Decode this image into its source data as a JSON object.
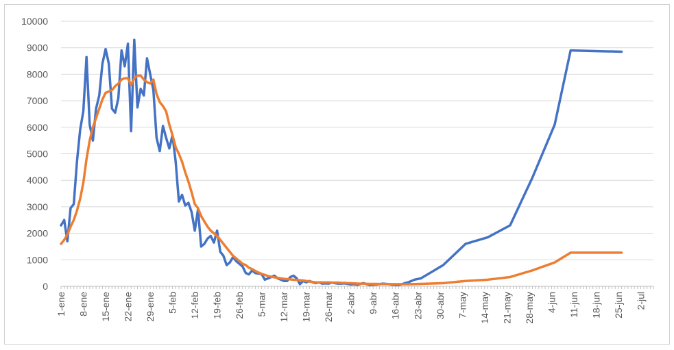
{
  "chart_data": {
    "type": "line",
    "title": "",
    "xlabel": "",
    "ylabel": "",
    "ylim": [
      0,
      10000
    ],
    "yticks": [
      0,
      1000,
      2000,
      3000,
      4000,
      5000,
      6000,
      7000,
      8000,
      9000,
      10000
    ],
    "x_range": [
      "1-ene",
      "8-jul"
    ],
    "grid": true,
    "legend": "none",
    "x_tick_labels": [
      "1-ene",
      "8-ene",
      "15-ene",
      "22-ene",
      "29-ene",
      "5-feb",
      "12-feb",
      "19-feb",
      "26-feb",
      "5-mar",
      "12-mar",
      "19-mar",
      "26-mar",
      "2-abr",
      "9-abr",
      "16-abr",
      "23-abr",
      "30-abr",
      "7-may",
      "14-may",
      "21-may",
      "28-may",
      "4-jun",
      "11-jun",
      "18-jun",
      "25-jun",
      "2-jul"
    ],
    "series": [
      {
        "color": "#4472c4",
        "points": [
          [
            0,
            2300
          ],
          [
            1,
            2500
          ],
          [
            2,
            1700
          ],
          [
            3,
            2950
          ],
          [
            4,
            3100
          ],
          [
            5,
            4700
          ],
          [
            6,
            5900
          ],
          [
            7,
            6600
          ],
          [
            8,
            8650
          ],
          [
            9,
            6100
          ],
          [
            10,
            5500
          ],
          [
            11,
            6700
          ],
          [
            12,
            7200
          ],
          [
            13,
            8400
          ],
          [
            14,
            8950
          ],
          [
            15,
            8400
          ],
          [
            16,
            6700
          ],
          [
            17,
            6550
          ],
          [
            18,
            7100
          ],
          [
            19,
            8900
          ],
          [
            20,
            8300
          ],
          [
            21,
            9150
          ],
          [
            22,
            5850
          ],
          [
            23,
            9300
          ],
          [
            24,
            6750
          ],
          [
            25,
            7450
          ],
          [
            26,
            7200
          ],
          [
            27,
            8600
          ],
          [
            28,
            8000
          ],
          [
            29,
            7400
          ],
          [
            30,
            5600
          ],
          [
            31,
            5100
          ],
          [
            32,
            6050
          ],
          [
            33,
            5600
          ],
          [
            34,
            5200
          ],
          [
            35,
            5700
          ],
          [
            36,
            4700
          ],
          [
            37,
            3200
          ],
          [
            38,
            3450
          ],
          [
            39,
            3050
          ],
          [
            40,
            3150
          ],
          [
            41,
            2800
          ],
          [
            42,
            2100
          ],
          [
            43,
            2900
          ],
          [
            44,
            1500
          ],
          [
            45,
            1600
          ],
          [
            46,
            1800
          ],
          [
            47,
            1900
          ],
          [
            48,
            1650
          ],
          [
            49,
            2100
          ],
          [
            50,
            1300
          ],
          [
            51,
            1150
          ],
          [
            52,
            800
          ],
          [
            53,
            900
          ],
          [
            54,
            1100
          ],
          [
            55,
            950
          ],
          [
            56,
            850
          ],
          [
            57,
            750
          ],
          [
            58,
            500
          ],
          [
            59,
            450
          ],
          [
            60,
            600
          ],
          [
            61,
            500
          ],
          [
            62,
            480
          ],
          [
            63,
            460
          ],
          [
            64,
            250
          ],
          [
            65,
            300
          ],
          [
            66,
            350
          ],
          [
            67,
            400
          ],
          [
            68,
            300
          ],
          [
            69,
            250
          ],
          [
            70,
            200
          ],
          [
            71,
            200
          ],
          [
            72,
            350
          ],
          [
            73,
            400
          ],
          [
            74,
            300
          ],
          [
            75,
            80
          ],
          [
            76,
            200
          ],
          [
            77,
            150
          ],
          [
            78,
            200
          ],
          [
            79,
            150
          ],
          [
            80,
            120
          ],
          [
            81,
            150
          ],
          [
            82,
            100
          ],
          [
            83,
            110
          ],
          [
            84,
            100
          ],
          [
            85,
            140
          ],
          [
            86,
            120
          ],
          [
            87,
            100
          ],
          [
            88,
            100
          ],
          [
            89,
            110
          ],
          [
            90,
            90
          ],
          [
            91,
            70
          ],
          [
            92,
            80
          ],
          [
            93,
            60
          ],
          [
            94,
            90
          ],
          [
            95,
            120
          ],
          [
            96,
            80
          ],
          [
            97,
            50
          ],
          [
            98,
            60
          ],
          [
            99,
            70
          ],
          [
            100,
            80
          ],
          [
            101,
            100
          ],
          [
            102,
            90
          ],
          [
            103,
            80
          ],
          [
            104,
            60
          ],
          [
            105,
            50
          ],
          [
            106,
            50
          ],
          [
            107,
            80
          ],
          [
            108,
            120
          ],
          [
            109,
            150
          ],
          [
            110,
            200
          ],
          [
            111,
            250
          ],
          [
            113,
            300
          ],
          [
            120,
            800
          ],
          [
            127,
            1600
          ],
          [
            134,
            1850
          ],
          [
            141,
            2300
          ],
          [
            148,
            4100
          ],
          [
            155,
            6100
          ],
          [
            160,
            8900
          ],
          [
            176,
            8850
          ]
        ]
      },
      {
        "color": "#ed7d31",
        "points": [
          [
            0,
            1600
          ],
          [
            1,
            1750
          ],
          [
            2,
            1950
          ],
          [
            3,
            2250
          ],
          [
            4,
            2500
          ],
          [
            5,
            2850
          ],
          [
            6,
            3300
          ],
          [
            7,
            3900
          ],
          [
            8,
            4800
          ],
          [
            9,
            5500
          ],
          [
            10,
            6000
          ],
          [
            11,
            6350
          ],
          [
            12,
            6700
          ],
          [
            13,
            7050
          ],
          [
            14,
            7300
          ],
          [
            15,
            7350
          ],
          [
            16,
            7400
          ],
          [
            17,
            7550
          ],
          [
            18,
            7650
          ],
          [
            19,
            7800
          ],
          [
            20,
            7850
          ],
          [
            21,
            7850
          ],
          [
            22,
            7600
          ],
          [
            23,
            7850
          ],
          [
            24,
            7950
          ],
          [
            25,
            7950
          ],
          [
            26,
            7800
          ],
          [
            27,
            7700
          ],
          [
            28,
            7650
          ],
          [
            29,
            7800
          ],
          [
            30,
            7250
          ],
          [
            31,
            6950
          ],
          [
            32,
            6800
          ],
          [
            33,
            6600
          ],
          [
            34,
            6100
          ],
          [
            35,
            5700
          ],
          [
            36,
            5250
          ],
          [
            37,
            5000
          ],
          [
            38,
            4700
          ],
          [
            39,
            4300
          ],
          [
            40,
            3950
          ],
          [
            41,
            3550
          ],
          [
            42,
            3100
          ],
          [
            43,
            2950
          ],
          [
            44,
            2650
          ],
          [
            45,
            2450
          ],
          [
            46,
            2250
          ],
          [
            47,
            2100
          ],
          [
            48,
            2000
          ],
          [
            49,
            1900
          ],
          [
            50,
            1750
          ],
          [
            51,
            1600
          ],
          [
            52,
            1450
          ],
          [
            53,
            1300
          ],
          [
            54,
            1150
          ],
          [
            55,
            1050
          ],
          [
            56,
            950
          ],
          [
            57,
            850
          ],
          [
            58,
            800
          ],
          [
            59,
            700
          ],
          [
            60,
            650
          ],
          [
            61,
            580
          ],
          [
            62,
            520
          ],
          [
            63,
            470
          ],
          [
            64,
            430
          ],
          [
            65,
            390
          ],
          [
            66,
            360
          ],
          [
            67,
            340
          ],
          [
            68,
            320
          ],
          [
            69,
            300
          ],
          [
            70,
            280
          ],
          [
            71,
            270
          ],
          [
            72,
            260
          ],
          [
            73,
            250
          ],
          [
            74,
            240
          ],
          [
            75,
            230
          ],
          [
            76,
            220
          ],
          [
            77,
            200
          ],
          [
            78,
            180
          ],
          [
            79,
            165
          ],
          [
            80,
            150
          ],
          [
            81,
            150
          ],
          [
            82,
            150
          ],
          [
            83,
            150
          ],
          [
            84,
            150
          ],
          [
            85,
            140
          ],
          [
            86,
            140
          ],
          [
            87,
            140
          ],
          [
            88,
            130
          ],
          [
            89,
            130
          ],
          [
            90,
            120
          ],
          [
            91,
            115
          ],
          [
            92,
            110
          ],
          [
            93,
            105
          ],
          [
            94,
            100
          ],
          [
            95,
            100
          ],
          [
            96,
            95
          ],
          [
            97,
            90
          ],
          [
            98,
            90
          ],
          [
            99,
            90
          ],
          [
            100,
            88
          ],
          [
            101,
            85
          ],
          [
            102,
            85
          ],
          [
            103,
            85
          ],
          [
            104,
            82
          ],
          [
            105,
            80
          ],
          [
            106,
            80
          ],
          [
            107,
            80
          ],
          [
            108,
            80
          ],
          [
            110,
            80
          ],
          [
            113,
            90
          ],
          [
            120,
            120
          ],
          [
            127,
            200
          ],
          [
            134,
            250
          ],
          [
            141,
            350
          ],
          [
            148,
            600
          ],
          [
            155,
            900
          ],
          [
            160,
            1270
          ],
          [
            176,
            1270
          ]
        ]
      }
    ]
  }
}
